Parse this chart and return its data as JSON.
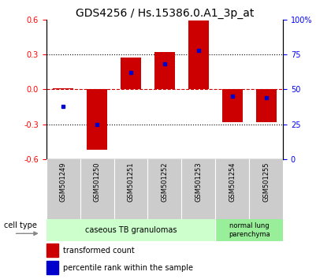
{
  "title": "GDS4256 / Hs.15386.0.A1_3p_at",
  "samples": [
    "GSM501249",
    "GSM501250",
    "GSM501251",
    "GSM501252",
    "GSM501253",
    "GSM501254",
    "GSM501255"
  ],
  "transformed_count": [
    0.01,
    -0.52,
    0.27,
    0.32,
    0.59,
    -0.28,
    -0.28
  ],
  "percentile_rank": [
    38,
    25,
    62,
    68,
    78,
    45,
    44
  ],
  "ylim": [
    -0.6,
    0.6
  ],
  "yticks_left": [
    -0.6,
    -0.3,
    0.0,
    0.3,
    0.6
  ],
  "right_axis_values": [
    0,
    25,
    50,
    75,
    100
  ],
  "right_axis_positions": [
    -0.6,
    -0.3,
    0.0,
    0.3,
    0.6
  ],
  "bar_color": "#cc0000",
  "dot_color": "#0000cc",
  "bg_color": "#ffffff",
  "group0_color": "#ccffcc",
  "group1_color": "#99ee99",
  "sample_bg_color": "#cccccc",
  "groups": [
    {
      "label": "caseous TB granulomas",
      "start": 0,
      "end": 4
    },
    {
      "label": "normal lung\nparenchyma",
      "start": 5,
      "end": 6
    }
  ],
  "legend": [
    {
      "label": "transformed count",
      "color": "#cc0000"
    },
    {
      "label": "percentile rank within the sample",
      "color": "#0000cc"
    }
  ],
  "cell_type_label": "cell type",
  "title_fontsize": 10,
  "tick_fontsize": 7,
  "bar_width": 0.6
}
